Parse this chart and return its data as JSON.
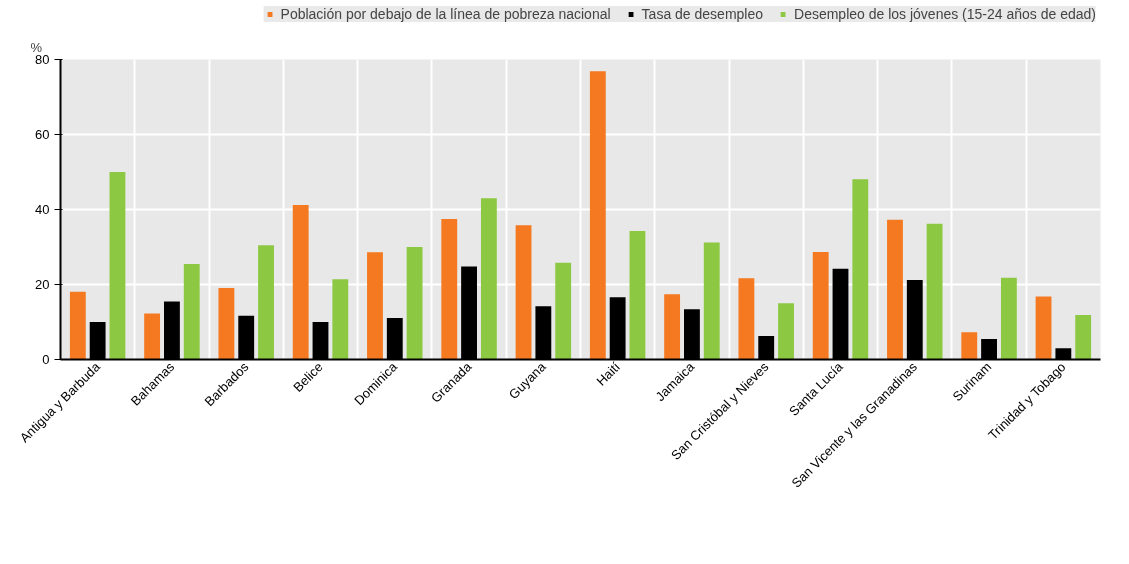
{
  "chart_data": {
    "type": "bar",
    "ylabel": "%",
    "categories": [
      "Antigua y Barbuda",
      "Bahamas",
      "Barbados",
      "Belice",
      "Dominica",
      "Granada",
      "Guyana",
      "Haití",
      "Jamaica",
      "San Cristóbal y Nieves",
      "Santa Lucía",
      "San Vicente y las Granadinas",
      "Surinam",
      "Trinidad y Tobago"
    ],
    "series": [
      {
        "name": "Población por debajo de la línea de pobreza nacional",
        "color": "#f47920",
        "values": [
          18.1,
          12.3,
          19.1,
          41.2,
          28.6,
          37.5,
          35.8,
          76.9,
          17.4,
          21.7,
          28.7,
          37.3,
          7.3,
          16.8
        ]
      },
      {
        "name": "Tasa de desempleo",
        "color": "#000000",
        "values": [
          10.0,
          15.5,
          11.7,
          10.0,
          11.1,
          24.8,
          14.2,
          16.6,
          13.4,
          6.3,
          24.2,
          21.2,
          5.5,
          3.0
        ]
      },
      {
        "name": "Desempleo de los jóvenes (15-24 años de edad)",
        "color": "#8cc841",
        "values": [
          50.0,
          25.5,
          30.5,
          21.4,
          30.0,
          43.0,
          25.8,
          34.3,
          31.2,
          15.0,
          48.1,
          36.2,
          21.8,
          11.9
        ]
      }
    ],
    "ylim": [
      0,
      80
    ],
    "yticks": [
      0,
      20,
      40,
      60,
      80
    ],
    "grid": true,
    "legend": "top"
  }
}
